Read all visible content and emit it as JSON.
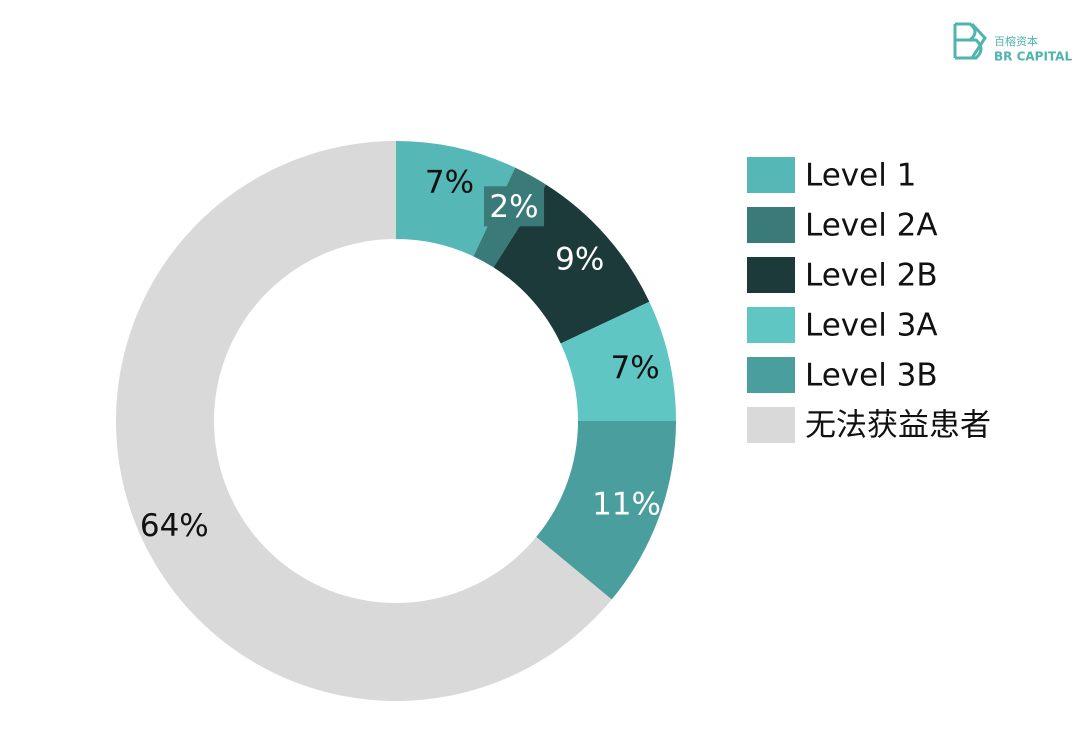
{
  "logo": {
    "name": "百榕资本",
    "subtitle": "BR CAPITAL"
  },
  "chart_data": {
    "type": "pie",
    "categories": [
      "Level 1",
      "Level 2A",
      "Level 2B",
      "Level 3A",
      "Level 3B",
      "无法获益患者"
    ],
    "values": [
      7,
      2,
      9,
      7,
      11,
      64
    ],
    "value_labels": [
      "7%",
      "2%",
      "9%",
      "7%",
      "11%",
      "64%"
    ],
    "colors": [
      "#55b8b6",
      "#3a7a78",
      "#1d3a3a",
      "#5fc6c4",
      "#4a9e9e",
      "#d9d9d9"
    ],
    "label_colors": [
      "#111111",
      "#ffffff",
      "#ffffff",
      "#111111",
      "#ffffff",
      "#111111"
    ],
    "legend": "right"
  }
}
